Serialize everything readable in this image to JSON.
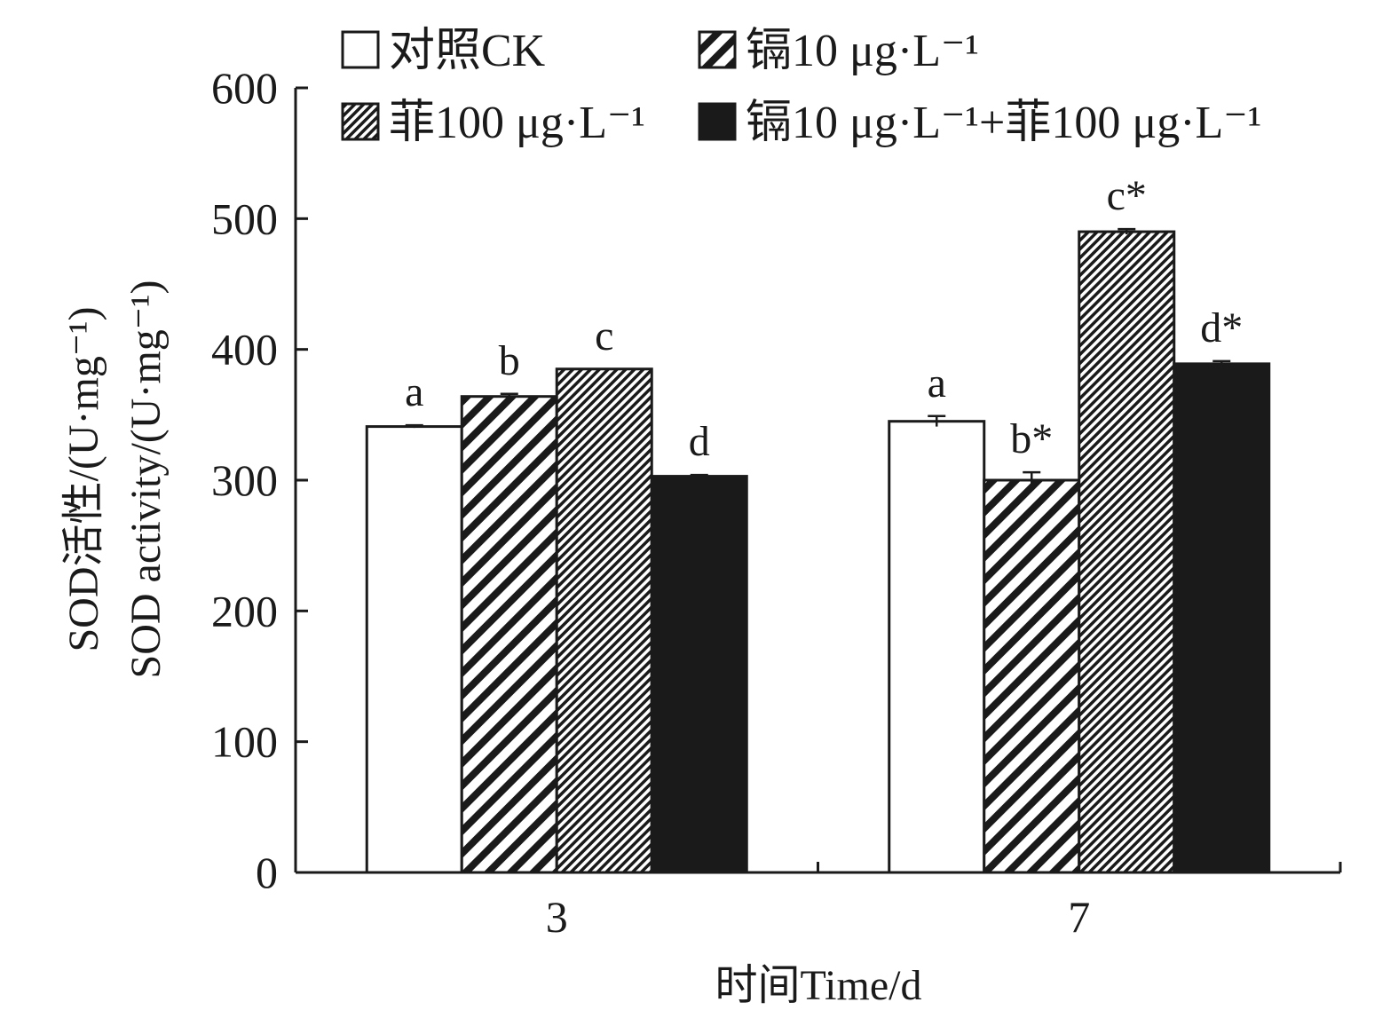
{
  "chart_data": {
    "type": "bar",
    "xlabel": "时间Time/d",
    "ylabel_line1": "SOD活性/(U·mg⁻¹)",
    "ylabel_line2": "SOD activity/(U·mg⁻¹)",
    "ylim": [
      0,
      600
    ],
    "yticks": [
      "0",
      "100",
      "200",
      "300",
      "400",
      "500",
      "600"
    ],
    "categories": [
      "3",
      "7"
    ],
    "grid": false,
    "legend_position": "top",
    "series": [
      {
        "name": "对照CK",
        "fill": "white",
        "values": [
          341,
          345
        ],
        "errors": [
          1,
          4
        ],
        "labels": [
          "a",
          "a"
        ]
      },
      {
        "name": "镉10 μg·L⁻¹",
        "fill": "wide-diagonal-hatch",
        "values": [
          364,
          300
        ],
        "errors": [
          2,
          6
        ],
        "labels": [
          "b",
          "b*"
        ]
      },
      {
        "name": "菲100 μg·L⁻¹",
        "fill": "fine-diagonal-hatch",
        "values": [
          385,
          490
        ],
        "errors": [
          0,
          2
        ],
        "labels": [
          "c",
          "c*"
        ]
      },
      {
        "name": "镉10 μg·L⁻¹+菲100 μg·L⁻¹",
        "fill": "black",
        "values": [
          303,
          389
        ],
        "errors": [
          1,
          2
        ],
        "labels": [
          "d",
          "d*"
        ]
      }
    ],
    "colors": {
      "ink": "#1a1a1a",
      "background": "#ffffff"
    }
  }
}
